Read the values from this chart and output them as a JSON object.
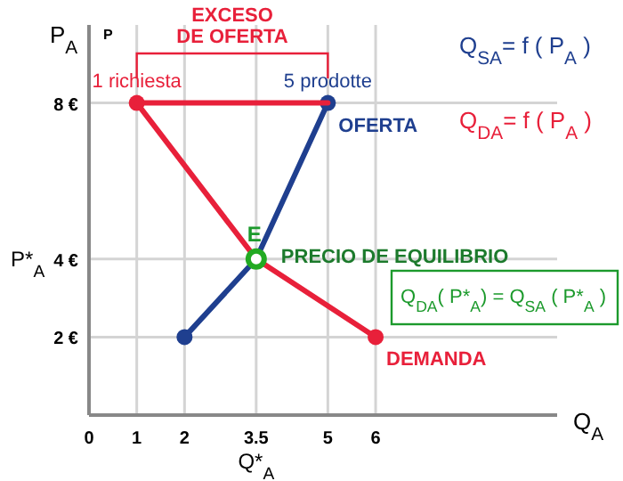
{
  "chart_data": {
    "type": "line",
    "xlabel": "Q$_{A}$",
    "ylabel": "P$_{A}$",
    "xlim": [
      0,
      9.8
    ],
    "ylim": [
      0,
      10
    ],
    "xticks": [
      {
        "value": 0,
        "label": "0"
      },
      1,
      2,
      3.5,
      5,
      6
    ],
    "yticks": [
      {
        "value": 2,
        "label": "2 €"
      },
      {
        "value": 4,
        "label": "4 €"
      },
      {
        "value": 8,
        "label": "8 €"
      }
    ],
    "grid": true,
    "legend": false,
    "marker": "circle",
    "series": [
      {
        "name": "DEMANDA",
        "color": "#e8203a",
        "x": [
          1,
          3.5,
          6
        ],
        "values": [
          8,
          4,
          2
        ]
      },
      {
        "name": "OFERTA",
        "color": "#1f3f8f",
        "x": [
          2,
          3.5,
          5
        ],
        "values": [
          2,
          4,
          8
        ]
      },
      {
        "color": "#e8203a",
        "x": [
          1,
          5
        ],
        "values": [
          8,
          8
        ],
        "marker": "none"
      },
      {
        "type": "scatter",
        "color": "#22aa22",
        "x": [
          3.5
        ],
        "values": [
          4
        ]
      }
    ],
    "annotations": [
      {
        "text": "1 richiesta",
        "x": 1,
        "y": 8
      },
      {
        "text": "5 prodotte",
        "x": 5,
        "y": 8
      },
      {
        "text": "E",
        "x": 3.5,
        "y": 4
      },
      {
        "text": "PRECIO DE EQUILIBRIO",
        "x": 3.5,
        "y": 4
      },
      "P*$_{A}$",
      "Q*$_{A}$",
      "EXCESO DE OFERTA",
      "Q$_{SA}$= f ( P$_{A}$ )",
      "Q$_{DA}$= f ( P$_{A}$ )",
      "Q$_{DA}$( P*$_{A}$) =  Q$_{SA}$ ( P*$_{A}$ )",
      "P"
    ]
  }
}
